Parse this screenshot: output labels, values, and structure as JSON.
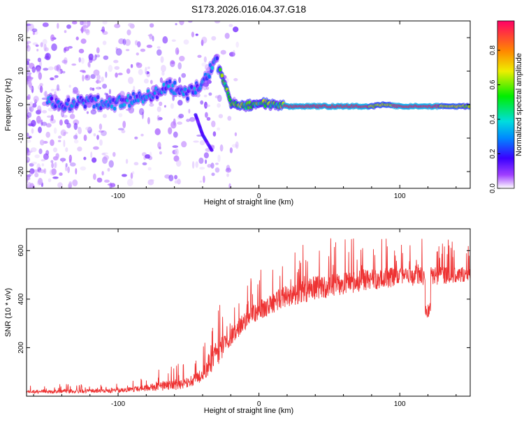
{
  "title": "S173.2026.016.04.37.G18",
  "chart_data": [
    {
      "type": "heatmap",
      "name": "spectrogram",
      "xlabel": "Height of straight line (km)",
      "ylabel": "Frequency (Hz)",
      "xlim": [
        -165,
        150
      ],
      "ylim": [
        -25,
        25
      ],
      "xticks": [
        -100,
        0,
        100
      ],
      "yticks": [
        -20,
        -10,
        0,
        10,
        20
      ],
      "colorbar": {
        "label": "Normalized spectral amplitude",
        "range": [
          0.0,
          0.97
        ],
        "ticks": [
          0.0,
          0.2,
          0.4,
          0.6,
          0.8
        ]
      },
      "ridge": [
        {
          "x": -150,
          "y": 1
        },
        {
          "x": -135,
          "y": 0
        },
        {
          "x": -120,
          "y": 1
        },
        {
          "x": -105,
          "y": 0
        },
        {
          "x": -90,
          "y": 1.5
        },
        {
          "x": -75,
          "y": 3
        },
        {
          "x": -65,
          "y": 6
        },
        {
          "x": -50,
          "y": 3
        },
        {
          "x": -40,
          "y": 7
        },
        {
          "x": -30,
          "y": 13
        },
        {
          "x": -20,
          "y": 0.5
        },
        {
          "x": -10,
          "y": -0.5
        },
        {
          "x": 0,
          "y": 0.5
        },
        {
          "x": 10,
          "y": 0
        },
        {
          "x": 20,
          "y": -0.5
        },
        {
          "x": 80,
          "y": -0.5
        },
        {
          "x": 88,
          "y": 0
        },
        {
          "x": 100,
          "y": -0.5
        },
        {
          "x": 150,
          "y": -0.5
        }
      ],
      "secondary_branch": [
        {
          "x": -45,
          "y": -3
        },
        {
          "x": -40,
          "y": -9
        },
        {
          "x": -33,
          "y": -14
        }
      ]
    },
    {
      "type": "line",
      "name": "snr",
      "xlabel": "Height of straight line (km)",
      "ylabel": "SNR (10 * v/v)",
      "xlim": [
        -165,
        150
      ],
      "ylim": [
        0,
        690
      ],
      "xticks": [
        -100,
        0,
        100
      ],
      "yticks": [
        200,
        400,
        600
      ],
      "series": [
        {
          "name": "SNR",
          "color": "#ee3333",
          "envelope": [
            {
              "x": -165,
              "base": 15,
              "amp": 30
            },
            {
              "x": -100,
              "base": 20,
              "amp": 40
            },
            {
              "x": -80,
              "base": 30,
              "amp": 60
            },
            {
              "x": -60,
              "base": 40,
              "amp": 100
            },
            {
              "x": -50,
              "base": 50,
              "amp": 90
            },
            {
              "x": -40,
              "base": 80,
              "amp": 130
            },
            {
              "x": -30,
              "base": 160,
              "amp": 260
            },
            {
              "x": -20,
              "base": 230,
              "amp": 140
            },
            {
              "x": -10,
              "base": 300,
              "amp": 180
            },
            {
              "x": 0,
              "base": 340,
              "amp": 180
            },
            {
              "x": 20,
              "base": 400,
              "amp": 200
            },
            {
              "x": 40,
              "base": 430,
              "amp": 220
            },
            {
              "x": 70,
              "base": 460,
              "amp": 200
            },
            {
              "x": 100,
              "base": 480,
              "amp": 180
            },
            {
              "x": 150,
              "base": 490,
              "amp": 150
            }
          ]
        }
      ]
    }
  ]
}
